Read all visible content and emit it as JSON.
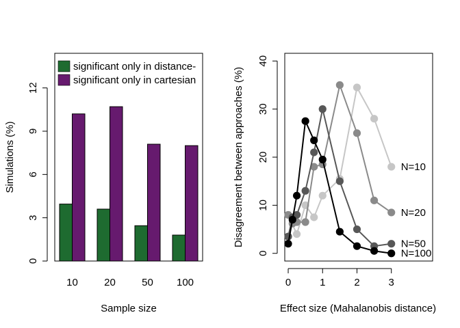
{
  "chart_data": [
    {
      "type": "bar",
      "xlabel": "Sample size",
      "ylabel": "Simulations (%)",
      "categories": [
        "10",
        "20",
        "50",
        "100"
      ],
      "ylim": [
        0,
        14.4
      ],
      "yticks": [
        0,
        3,
        6,
        9,
        12
      ],
      "grid": false,
      "legend_position": "top-left",
      "series": [
        {
          "name": "significant only in distance-",
          "color": "#1e6b30",
          "values": [
            3.95,
            3.6,
            2.45,
            1.8
          ]
        },
        {
          "name": "significant only in cartesian",
          "color": "#661a6e",
          "values": [
            10.2,
            10.7,
            8.1,
            8.0
          ]
        }
      ]
    },
    {
      "type": "line",
      "xlabel": "Effect size (Mahalanobis distance)",
      "ylabel": "Disagreement between approaches (%)",
      "xlim": [
        -0.1,
        4.2
      ],
      "ylim": [
        -1.6,
        41.6
      ],
      "xticks": [
        0,
        1,
        2,
        3
      ],
      "yticks": [
        0,
        10,
        20,
        30,
        40
      ],
      "grid": false,
      "series": [
        {
          "name": "N=10",
          "color": "#c6c6c6",
          "x": [
            0,
            0.25,
            0.5,
            0.75,
            1,
            1.5,
            2,
            2.5,
            3
          ],
          "y": [
            8,
            4,
            10,
            7.5,
            12,
            15.5,
            34.5,
            28,
            18
          ]
        },
        {
          "name": "N=20",
          "color": "#8a8a8a",
          "x": [
            0,
            0.125,
            0.25,
            0.5,
            0.75,
            1,
            1.5,
            2,
            2.5,
            3
          ],
          "y": [
            8,
            6.2,
            6.5,
            6.5,
            18,
            18.5,
            35,
            25,
            11,
            8.5
          ]
        },
        {
          "name": "N=50",
          "color": "#575757",
          "x": [
            0,
            0.125,
            0.25,
            0.5,
            0.75,
            1,
            1.5,
            2,
            2.5,
            3
          ],
          "y": [
            3.5,
            7.5,
            8,
            13,
            21,
            30,
            15,
            5,
            1.5,
            2
          ]
        },
        {
          "name": "N=100",
          "color": "#000000",
          "x": [
            0,
            0.125,
            0.25,
            0.5,
            0.75,
            1,
            1.5,
            2,
            2.5,
            3
          ],
          "y": [
            2,
            7,
            12,
            27.5,
            23.5,
            19.5,
            4.5,
            1.5,
            0.5,
            0
          ]
        }
      ]
    }
  ]
}
